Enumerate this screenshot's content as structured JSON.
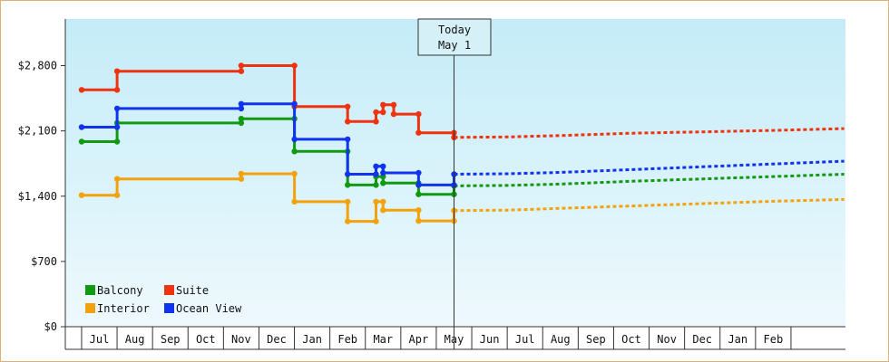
{
  "chart_data": {
    "type": "line",
    "title": "",
    "xlabel": "",
    "ylabel": "",
    "y_ticks": [
      "$0",
      "$700",
      "$1,400",
      "$2,100",
      "$2,800"
    ],
    "y_tick_values": [
      0,
      700,
      1400,
      2100,
      2800
    ],
    "ylim": [
      0,
      3300
    ],
    "months": [
      "Jul",
      "Aug",
      "Sep",
      "Oct",
      "Nov",
      "Dec",
      "Jan",
      "Feb",
      "Mar",
      "Apr",
      "May",
      "Jun",
      "Jul",
      "Aug",
      "Sep",
      "Oct",
      "Nov",
      "Dec",
      "Jan",
      "Feb"
    ],
    "today": {
      "line1": "Today",
      "line2": "May 1",
      "x": 10.0
    },
    "grid": false,
    "legend_position": "bottom-left",
    "series": [
      {
        "name": "Balcony",
        "color": "#119911",
        "actual": [
          [
            -0.5,
            1985
          ],
          [
            0.5,
            1985
          ],
          [
            0.5,
            2185
          ],
          [
            4.0,
            2185
          ],
          [
            4.0,
            2230
          ],
          [
            5.5,
            2230
          ],
          [
            5.5,
            1880
          ],
          [
            7.0,
            1880
          ],
          [
            7.0,
            1520
          ],
          [
            7.8,
            1520
          ],
          [
            7.8,
            1610
          ],
          [
            8.0,
            1610
          ],
          [
            8.0,
            1540
          ],
          [
            9.0,
            1540
          ],
          [
            9.0,
            1420
          ],
          [
            10.0,
            1420
          ],
          [
            10.0,
            1510
          ]
        ],
        "forecast": [
          [
            10.0,
            1510
          ],
          [
            11.5,
            1515
          ],
          [
            13.0,
            1530
          ],
          [
            15.0,
            1560
          ],
          [
            17.0,
            1585
          ],
          [
            19.0,
            1610
          ],
          [
            21.0,
            1635
          ]
        ]
      },
      {
        "name": "Suite",
        "color": "#ee3311",
        "actual": [
          [
            -0.5,
            2540
          ],
          [
            0.5,
            2540
          ],
          [
            0.5,
            2740
          ],
          [
            4.0,
            2740
          ],
          [
            4.0,
            2800
          ],
          [
            5.5,
            2800
          ],
          [
            5.5,
            2360
          ],
          [
            7.0,
            2360
          ],
          [
            7.0,
            2200
          ],
          [
            7.8,
            2200
          ],
          [
            7.8,
            2300
          ],
          [
            8.0,
            2300
          ],
          [
            8.0,
            2380
          ],
          [
            8.3,
            2380
          ],
          [
            8.3,
            2280
          ],
          [
            9.0,
            2280
          ],
          [
            9.0,
            2080
          ],
          [
            10.0,
            2080
          ],
          [
            10.0,
            2030
          ]
        ],
        "forecast": [
          [
            10.0,
            2030
          ],
          [
            11.5,
            2035
          ],
          [
            13.0,
            2050
          ],
          [
            15.0,
            2075
          ],
          [
            17.0,
            2090
          ],
          [
            19.0,
            2105
          ],
          [
            21.0,
            2125
          ]
        ]
      },
      {
        "name": "Interior",
        "color": "#f2a20d",
        "actual": [
          [
            -0.5,
            1410
          ],
          [
            0.5,
            1410
          ],
          [
            0.5,
            1585
          ],
          [
            4.0,
            1585
          ],
          [
            4.0,
            1640
          ],
          [
            5.5,
            1640
          ],
          [
            5.5,
            1340
          ],
          [
            7.0,
            1340
          ],
          [
            7.0,
            1130
          ],
          [
            7.8,
            1130
          ],
          [
            7.8,
            1340
          ],
          [
            8.0,
            1340
          ],
          [
            8.0,
            1250
          ],
          [
            9.0,
            1250
          ],
          [
            9.0,
            1135
          ],
          [
            10.0,
            1135
          ],
          [
            10.0,
            1245
          ]
        ],
        "forecast": [
          [
            10.0,
            1245
          ],
          [
            11.5,
            1250
          ],
          [
            13.0,
            1270
          ],
          [
            15.0,
            1295
          ],
          [
            17.0,
            1320
          ],
          [
            19.0,
            1345
          ],
          [
            21.0,
            1365
          ]
        ]
      },
      {
        "name": "Ocean View",
        "color": "#1133ee",
        "actual": [
          [
            -0.5,
            2140
          ],
          [
            0.5,
            2140
          ],
          [
            0.5,
            2340
          ],
          [
            4.0,
            2340
          ],
          [
            4.0,
            2390
          ],
          [
            5.5,
            2390
          ],
          [
            5.5,
            2010
          ],
          [
            7.0,
            2010
          ],
          [
            7.0,
            1635
          ],
          [
            7.8,
            1635
          ],
          [
            7.8,
            1720
          ],
          [
            8.0,
            1720
          ],
          [
            8.0,
            1650
          ],
          [
            9.0,
            1650
          ],
          [
            9.0,
            1520
          ],
          [
            10.0,
            1520
          ],
          [
            10.0,
            1635
          ]
        ],
        "forecast": [
          [
            10.0,
            1635
          ],
          [
            11.5,
            1640
          ],
          [
            13.0,
            1655
          ],
          [
            15.0,
            1685
          ],
          [
            17.0,
            1715
          ],
          [
            19.0,
            1745
          ],
          [
            21.0,
            1775
          ]
        ]
      }
    ]
  }
}
